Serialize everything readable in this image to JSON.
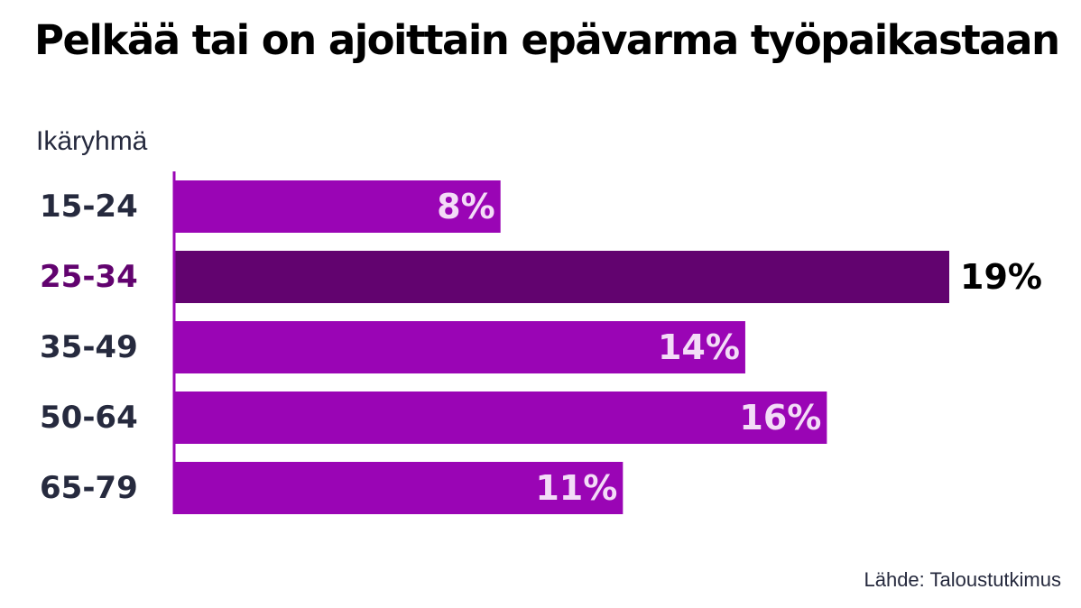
{
  "chart_data": {
    "type": "bar",
    "orientation": "horizontal",
    "title": "Pelkää tai on ajoittain epävarma työpaikastaan",
    "ylabel": "Ikäryhmä",
    "xlabel": "",
    "categories": [
      "15-24",
      "25-34",
      "35-49",
      "50-64",
      "65-79"
    ],
    "values": [
      8,
      19,
      14,
      16,
      11
    ],
    "value_labels": [
      "8%",
      "19%",
      "14%",
      "16%",
      "11%"
    ],
    "highlight_index": 1,
    "xlim": [
      0,
      19
    ],
    "grid": false,
    "legend": "none",
    "source": "Lähde: Taloustutkimus"
  },
  "colors": {
    "bar": "#9a05b5",
    "bar_highlight": "#62036f",
    "category_text": "#262a3e",
    "category_highlight_text": "#62036f",
    "inside_label_text": "#f3dcf7",
    "outside_label_text": "#000000",
    "axis_line": "#9a05b5"
  }
}
